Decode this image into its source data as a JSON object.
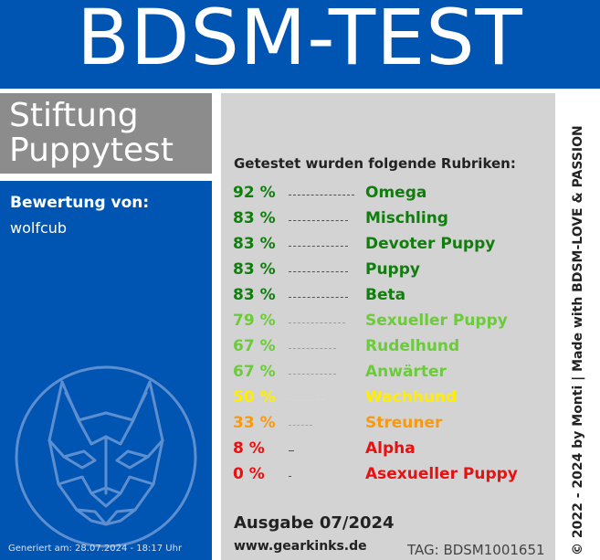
{
  "header": {
    "title": "BDSM-TEST"
  },
  "stiftung": {
    "line1": "Stiftung",
    "line2": "Puppytest"
  },
  "bewertung": {
    "label": "Bewertung von:",
    "user": "wolfcub"
  },
  "generated": "Generiert am: 28.07.2024 - 18:17 Uhr",
  "main": {
    "heading": "Getestet wurden folgende Rubriken:",
    "rows": [
      {
        "pct": "92 %",
        "name": "Omega",
        "value": 92,
        "color": "#127d0f"
      },
      {
        "pct": "83 %",
        "name": "Mischling",
        "value": 83,
        "color": "#127d0f"
      },
      {
        "pct": "83 %",
        "name": "Devoter Puppy",
        "value": 83,
        "color": "#127d0f"
      },
      {
        "pct": "83 %",
        "name": "Puppy",
        "value": 83,
        "color": "#127d0f"
      },
      {
        "pct": "83 %",
        "name": "Beta",
        "value": 83,
        "color": "#127d0f"
      },
      {
        "pct": "79 %",
        "name": "Sexueller Puppy",
        "value": 79,
        "color": "#6ccb3a"
      },
      {
        "pct": "67 %",
        "name": "Rudelhund",
        "value": 67,
        "color": "#6ccb3a"
      },
      {
        "pct": "67 %",
        "name": "Anwärter",
        "value": 67,
        "color": "#6ccb3a"
      },
      {
        "pct": "50 %",
        "name": "Wachhund",
        "value": 50,
        "color": "#ffee00"
      },
      {
        "pct": "33 %",
        "name": "Streuner",
        "value": 33,
        "color": "#f59a12"
      },
      {
        "pct": "8 %",
        "name": "Alpha",
        "value": 8,
        "color": "#e81010"
      },
      {
        "pct": "0 %",
        "name": "Asexueller Puppy",
        "value": 0,
        "color": "#e81010"
      }
    ],
    "ausgabe": "Ausgabe 07/2024",
    "website": "www.gearkinks.de",
    "tag": "TAG: BDSM1001651"
  },
  "side": {
    "text": "© 2022 - 2024 by Monti | Made with BDSM-LOVE & PASSION"
  },
  "icons": {
    "logo": "wolf-head-icon"
  }
}
